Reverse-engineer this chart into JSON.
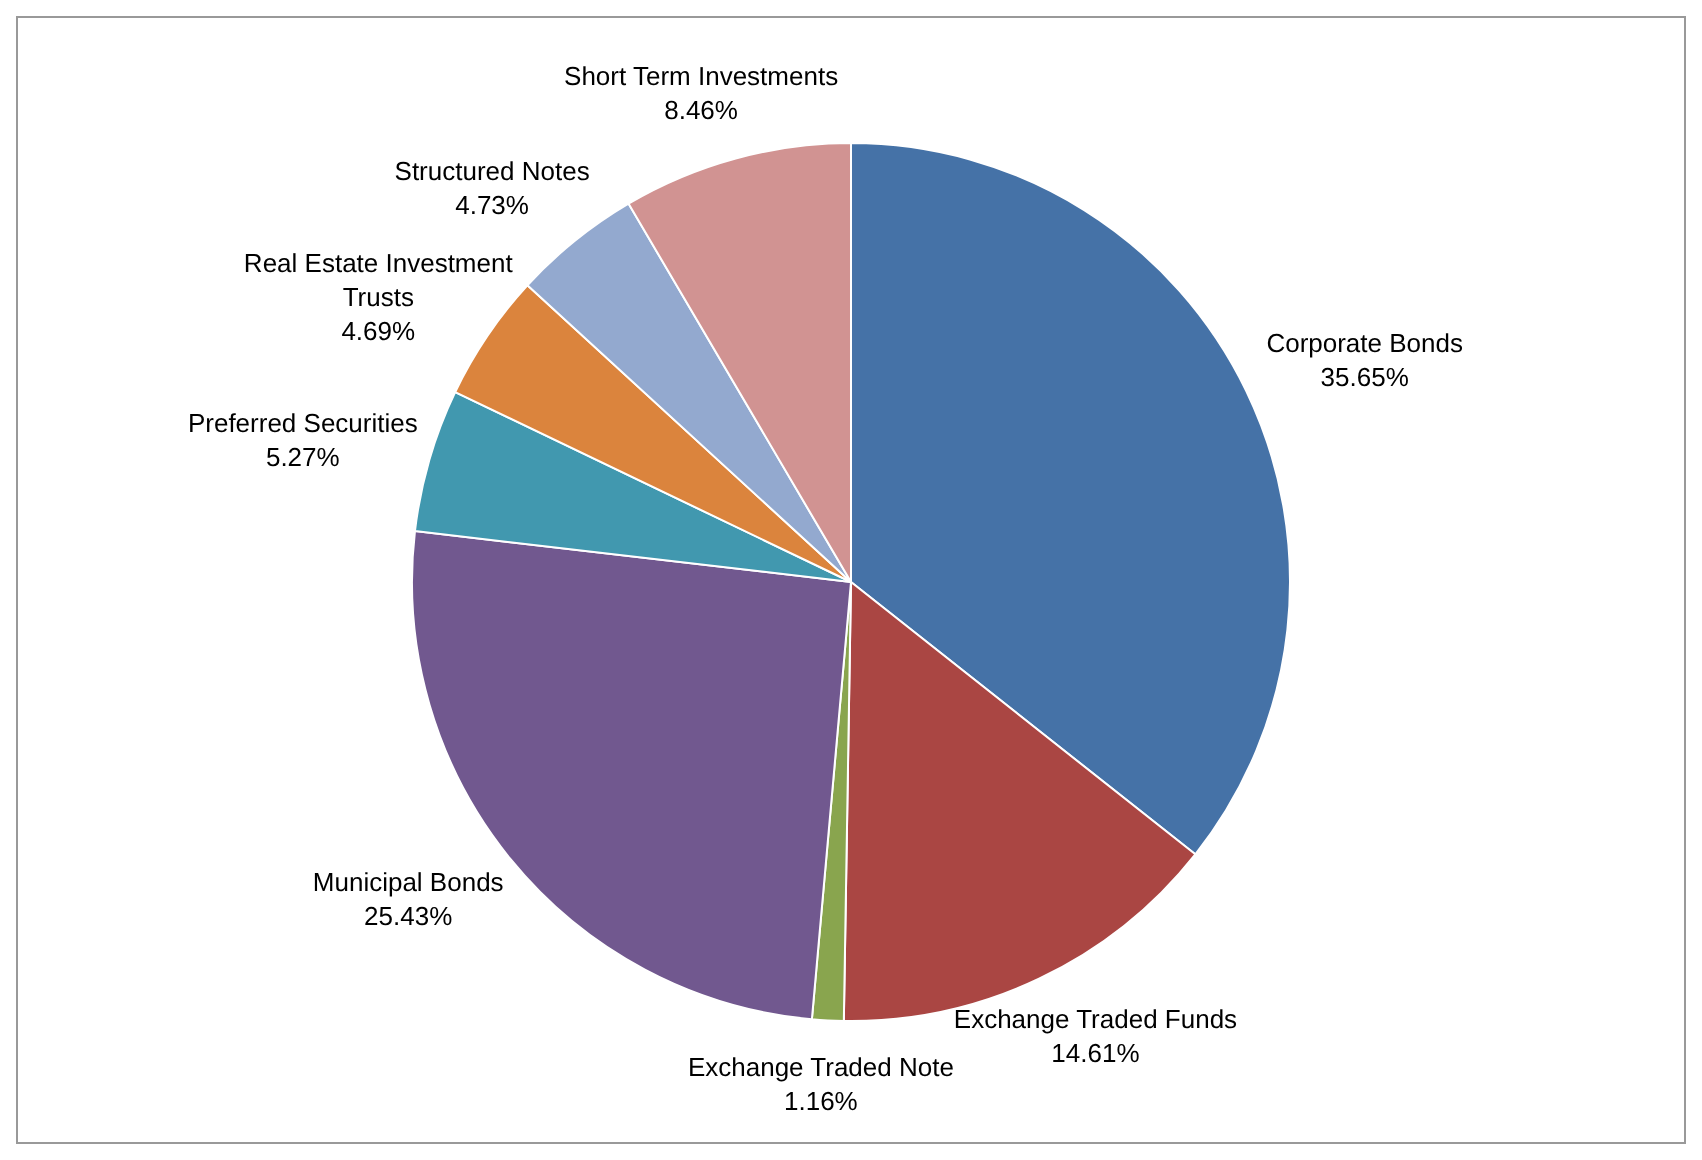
{
  "chart_data": {
    "type": "pie",
    "categories": [
      "Corporate Bonds",
      "Exchange Traded Funds",
      "Exchange Traded Note",
      "Municipal Bonds",
      "Preferred Securities",
      "Real Estate Investment Trusts",
      "Structured Notes",
      "Short Term Investments"
    ],
    "values": [
      35.65,
      14.61,
      1.16,
      25.43,
      5.27,
      4.69,
      4.73,
      8.46
    ],
    "colors": [
      "#4572a7",
      "#aa4643",
      "#89a54e",
      "#71588f",
      "#4198af",
      "#db843d",
      "#93a9cf",
      "#d19392"
    ],
    "value_labels": [
      "35.65%",
      "14.61%",
      "1.16%",
      "25.43%",
      "5.27%",
      "4.69%",
      "4.73%",
      "8.46%"
    ],
    "legend": false
  }
}
